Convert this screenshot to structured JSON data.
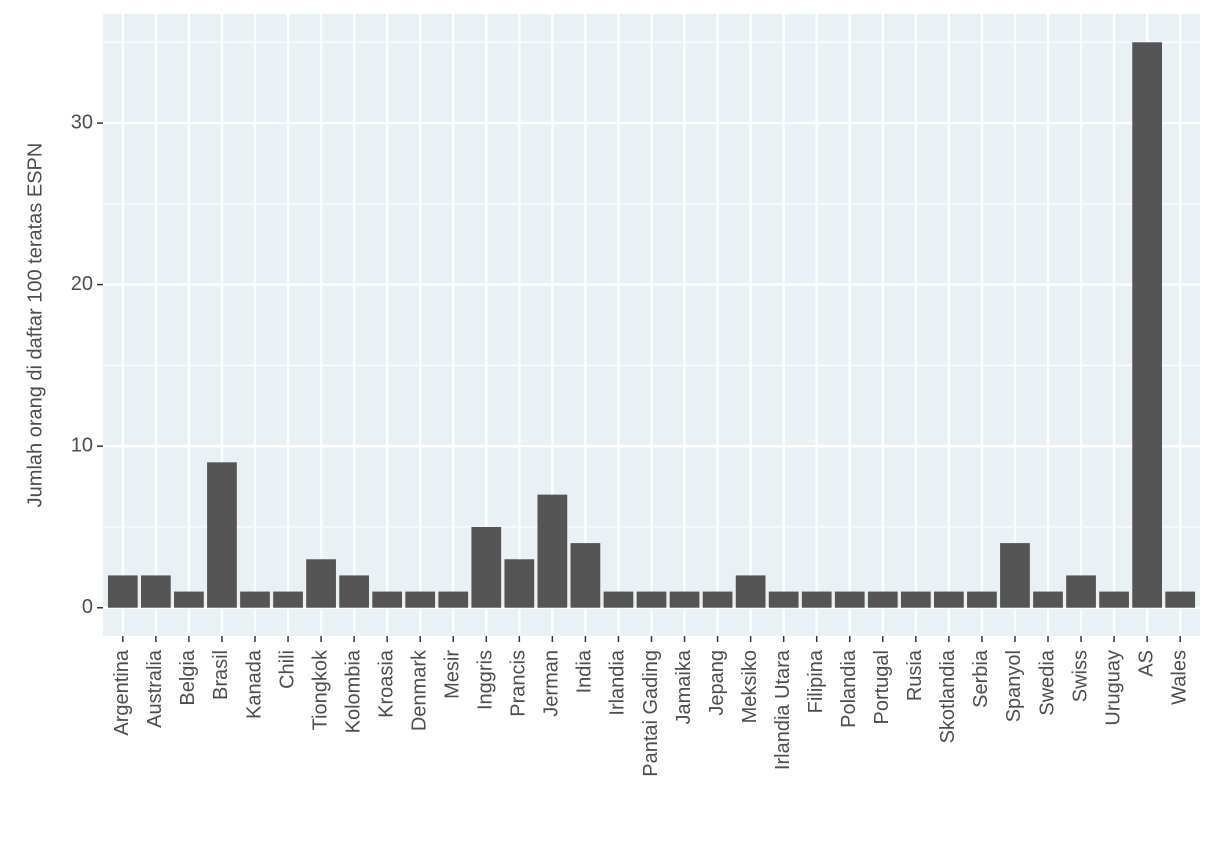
{
  "chart_data": {
    "type": "bar",
    "y_label": "Jumlah orang di daftar 100 teratas ESPN",
    "categories": [
      "Argentina",
      "Australia",
      "Belgia",
      "Brasil",
      "Kanada",
      "Chili",
      "Tiongkok",
      "Kolombia",
      "Kroasia",
      "Denmark",
      "Mesir",
      "Inggris",
      "Prancis",
      "Jerman",
      "India",
      "Irlandia",
      "Pantai Gading",
      "Jamaika",
      "Jepang",
      "Meksiko",
      "Irlandia Utara",
      "Filipina",
      "Polandia",
      "Portugal",
      "Rusia",
      "Skotlandia",
      "Serbia",
      "Spanyol",
      "Swedia",
      "Swiss",
      "Uruguay",
      "AS",
      "Wales"
    ],
    "values": [
      2,
      2,
      1,
      9,
      1,
      1,
      3,
      2,
      1,
      1,
      1,
      5,
      3,
      7,
      4,
      1,
      1,
      1,
      1,
      2,
      1,
      1,
      1,
      1,
      1,
      1,
      1,
      4,
      1,
      2,
      1,
      35,
      1
    ],
    "color": "#555555",
    "ylim": [
      -1.75,
      36.75
    ],
    "yticks": [
      0,
      10,
      20,
      30
    ],
    "grid": true
  }
}
